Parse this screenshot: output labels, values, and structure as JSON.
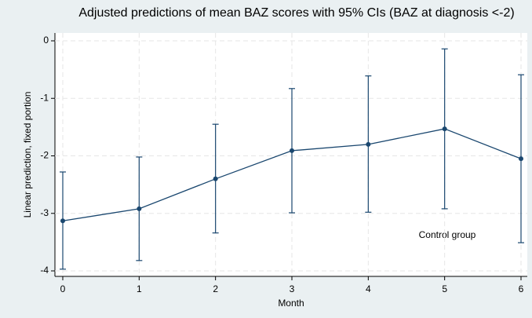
{
  "chart_data": {
    "type": "line",
    "title": "Adjusted predictions of mean BAZ scores with 95% CIs (BAZ at diagnosis <-2)",
    "xlabel": "Month",
    "ylabel": "Linear prediction, fixed portion",
    "annotation": "Control group",
    "x": [
      0,
      1,
      2,
      3,
      4,
      5,
      6
    ],
    "series": [
      {
        "color": "#1a476f",
        "values": [
          -3.13,
          -2.92,
          -2.4,
          -1.91,
          -1.8,
          -1.53,
          -2.05
        ],
        "ci_low": [
          -3.97,
          -3.82,
          -3.34,
          -2.99,
          -2.98,
          -2.92,
          -3.51
        ],
        "ci_high": [
          -2.28,
          -2.02,
          -1.45,
          -0.83,
          -0.61,
          -0.14,
          -0.59
        ]
      }
    ],
    "xlim": [
      0,
      6
    ],
    "xticks": [
      0,
      1,
      2,
      3,
      4,
      5,
      6
    ],
    "ylim": [
      -4,
      0
    ],
    "yticks": [
      -4,
      -3,
      -2,
      -1,
      0
    ],
    "grid": true
  }
}
